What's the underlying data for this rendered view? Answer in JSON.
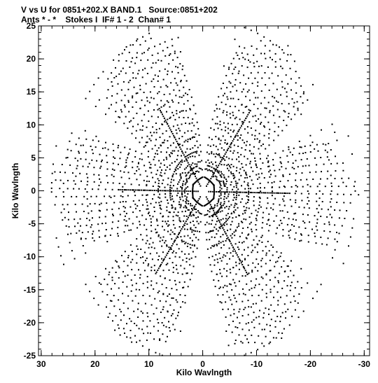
{
  "header": {
    "title_line1": "V vs U for 0851+202.X BAND.1   Source:0851+202",
    "title_line2": "Ants * - *    Stokes I  IF# 1 - 2  Chan# 1"
  },
  "chart_data": {
    "type": "scatter",
    "title": "V vs U for 0851+202.X BAND.1   Source:0851+202",
    "subtitle": "Ants * - *    Stokes I  IF# 1 - 2  Chan# 1",
    "xlabel": "Kilo Wavlngth",
    "ylabel": "Kilo Wavlngth",
    "xlim": [
      30.5,
      -31
    ],
    "ylim": [
      -25,
      25
    ],
    "x_ticks": [
      30,
      20,
      10,
      0,
      -10,
      -20,
      -30
    ],
    "x_tick_labels": [
      "30",
      "20",
      "10",
      "0",
      "-10",
      "-20",
      "-30"
    ],
    "y_ticks": [
      25,
      20,
      15,
      10,
      5,
      0,
      -5,
      -10,
      -15,
      -20,
      -25
    ],
    "y_tick_labels": [
      "25",
      "20",
      "15",
      "10",
      "5",
      "0",
      "-5",
      "-10",
      "-15",
      "-20",
      "-25"
    ],
    "grid": false,
    "marker_color": "#000000",
    "description_of_points": "uv-coverage: symmetric star pattern with six arms at approx. 0, 60, 120 degrees plus conjugates, extending to about 29 kilo-wavelengths along U and 24 along V",
    "arms": [
      {
        "u": 29.0,
        "v": 0.5
      },
      {
        "u": 15.0,
        "v": 23.0
      },
      {
        "u": -16.0,
        "v": 22.5
      },
      {
        "u": -29.0,
        "v": -0.5
      },
      {
        "u": -15.0,
        "v": -23.0
      },
      {
        "u": 16.0,
        "v": -22.5
      }
    ]
  }
}
